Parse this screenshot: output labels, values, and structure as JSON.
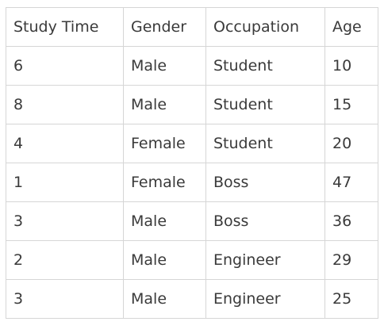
{
  "table": {
    "headers": [
      "Study Time",
      "Gender",
      "Occupation",
      "Age"
    ],
    "rows": [
      [
        "6",
        "Male",
        "Student",
        "10"
      ],
      [
        "8",
        "Male",
        "Student",
        "15"
      ],
      [
        "4",
        "Female",
        "Student",
        "20"
      ],
      [
        "1",
        "Female",
        "Boss",
        "47"
      ],
      [
        "3",
        "Male",
        "Boss",
        "36"
      ],
      [
        "2",
        "Male",
        "Engineer",
        "29"
      ],
      [
        "3",
        "Male",
        "Engineer",
        "25"
      ]
    ]
  }
}
